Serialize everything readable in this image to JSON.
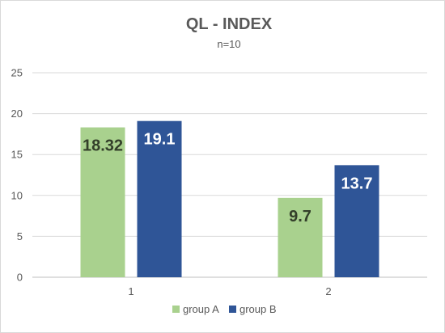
{
  "chart_data": {
    "type": "bar",
    "title": "QL - INDEX",
    "subtitle": "n=10",
    "categories": [
      "1",
      "2"
    ],
    "series": [
      {
        "name": "group A",
        "values": [
          18.32,
          9.7
        ],
        "labels": [
          "18.32",
          "9.7"
        ],
        "color": "#a9d18e",
        "label_color": "#333f2a"
      },
      {
        "name": "group B",
        "values": [
          19.1,
          13.7
        ],
        "labels": [
          "19.1",
          "13.7"
        ],
        "color": "#2f5597",
        "label_color": "#ffffff"
      }
    ],
    "ylim": [
      0,
      25
    ],
    "yticks": [
      0,
      5,
      10,
      15,
      20,
      25
    ],
    "grid": true,
    "legend_position": "bottom"
  }
}
